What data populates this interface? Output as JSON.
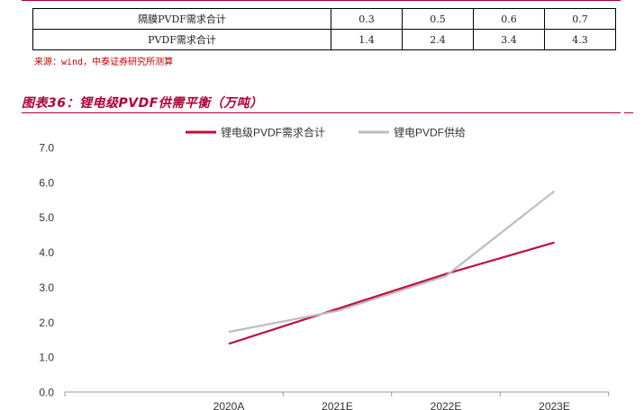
{
  "table": {
    "rows": [
      {
        "label": "隔膜PVDF需求合计",
        "values": [
          "0.3",
          "0.5",
          "0.6",
          "0.7"
        ]
      },
      {
        "label": "PVDF需求合计",
        "values": [
          "1.4",
          "2.4",
          "3.4",
          "4.3"
        ]
      }
    ]
  },
  "source": "来源：wind，中泰证券研究所测算",
  "figure_title": "图表36：锂电级PVDF供需平衡（万吨）",
  "colors": {
    "accent": "#b00034",
    "demand": "#c0103c",
    "supply": "#bdbdbd"
  },
  "chart_data": {
    "type": "line",
    "categories": [
      "2020A",
      "2021E",
      "2022E",
      "2023E"
    ],
    "series": [
      {
        "name": "锂电级PVDF需求合计",
        "values": [
          1.38,
          2.38,
          3.38,
          4.28
        ]
      },
      {
        "name": "锂电PVDF供给",
        "values": [
          1.72,
          2.32,
          3.32,
          5.75
        ]
      }
    ],
    "yticks": [
      "0.0",
      "1.0",
      "2.0",
      "3.0",
      "4.0",
      "5.0",
      "6.0",
      "7.0"
    ],
    "ylim": [
      0,
      7
    ],
    "grid": false,
    "legend": "top"
  }
}
